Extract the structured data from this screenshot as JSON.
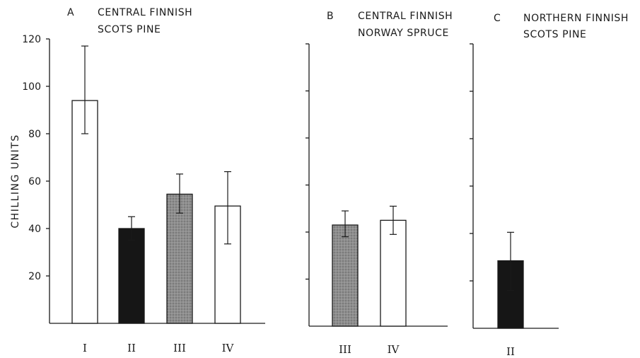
{
  "colors": {
    "open": "#ffffff",
    "black": "#161616",
    "stippled": "#8c8c8c",
    "outline": "#1a1a1a"
  },
  "chart_data": [
    {
      "type": "bar",
      "panel": "A",
      "title_lines": [
        "CENTRAL FINNISH",
        "SCOTS PINE"
      ],
      "ylabel": "CHILLING UNITS",
      "ylim": [
        0,
        120
      ],
      "yticks": [
        20,
        40,
        60,
        80,
        100,
        120
      ],
      "categories": [
        "I",
        "II",
        "III",
        "IV"
      ],
      "values": [
        94,
        40,
        54.5,
        49.5
      ],
      "error_low": [
        80,
        35,
        46.5,
        33.5
      ],
      "error_high": [
        117,
        45,
        63,
        64
      ],
      "fills": [
        "open",
        "black",
        "stippled",
        "open"
      ]
    },
    {
      "type": "bar",
      "panel": "B",
      "title_lines": [
        "CENTRAL FINNISH",
        "NORWAY SPRUCE"
      ],
      "ylabel": "",
      "ylim": [
        0,
        120
      ],
      "yticks": [
        20,
        40,
        60,
        80,
        100,
        120
      ],
      "categories": [
        "III",
        "IV"
      ],
      "values": [
        43,
        45
      ],
      "error_low": [
        38,
        39
      ],
      "error_high": [
        49,
        51
      ],
      "fills": [
        "stippled",
        "open"
      ]
    },
    {
      "type": "bar",
      "panel": "C",
      "title_lines": [
        "NORTHERN FINNISH",
        "SCOTS PINE"
      ],
      "ylabel": "",
      "ylim": [
        0,
        120
      ],
      "yticks": [
        20,
        40,
        60,
        80,
        100,
        120
      ],
      "categories": [
        "II"
      ],
      "values": [
        28.5
      ],
      "error_low": [
        16
      ],
      "error_high": [
        40.5
      ],
      "fills": [
        "black"
      ]
    }
  ]
}
